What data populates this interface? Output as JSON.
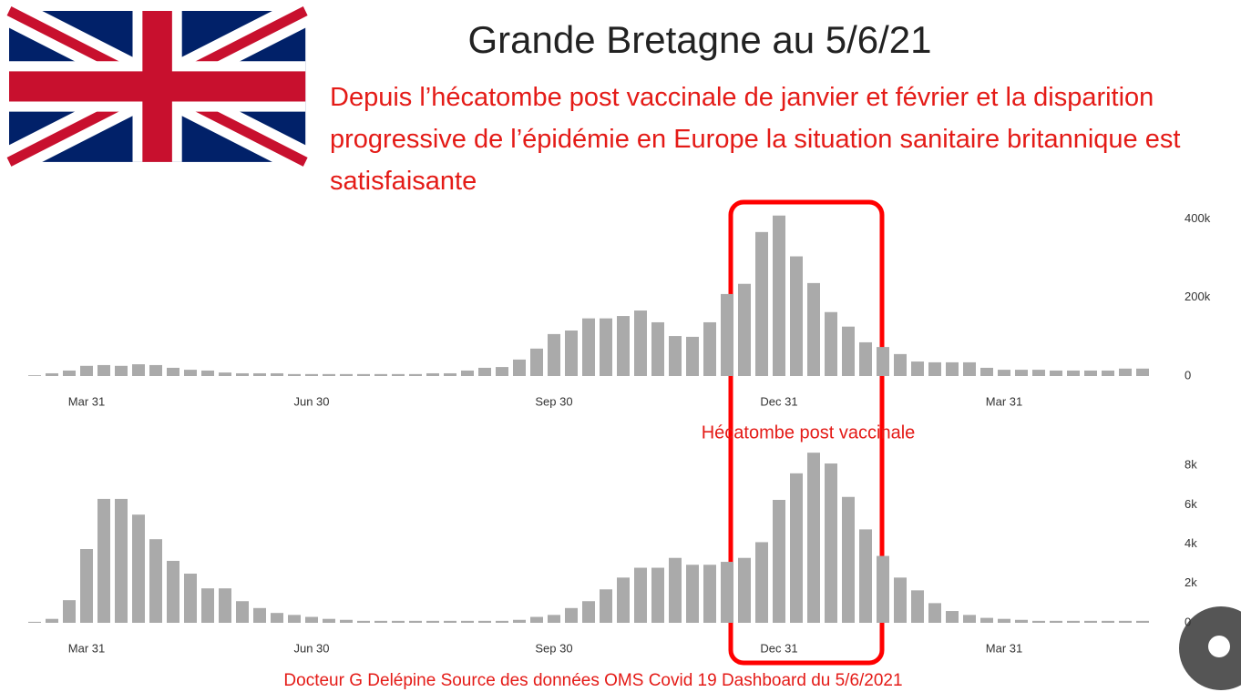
{
  "title": "Grande Bretagne  au 5/6/21",
  "subtitle": "Depuis l’hécatombe post vaccinale de janvier et février et la disparition progressive de l’épidémie en Europe la situation sanitaire britannique est satisfaisante",
  "annotation": "Hécatombe post vaccinale",
  "footer": "Docteur G Delépine  Source des données OMS Covid 19 Dashboard du 5/6/2021",
  "chart_data": [
    {
      "type": "bar",
      "color": "#aaaaaa",
      "categories": [
        null,
        null,
        null,
        "Mar 31",
        null,
        null,
        null,
        null,
        null,
        null,
        null,
        null,
        null,
        null,
        null,
        null,
        "Jun 30",
        null,
        null,
        null,
        null,
        null,
        null,
        null,
        null,
        null,
        null,
        null,
        null,
        null,
        "Sep 30",
        null,
        null,
        null,
        null,
        null,
        null,
        null,
        null,
        null,
        null,
        null,
        null,
        "Dec 31",
        null,
        null,
        null,
        null,
        null,
        null,
        null,
        null,
        null,
        null,
        null,
        null,
        "Mar 31",
        null,
        null,
        null,
        null,
        null,
        null,
        null,
        null
      ],
      "values": [
        2000,
        7000,
        14000,
        26000,
        28000,
        26000,
        30000,
        28000,
        21000,
        16000,
        14000,
        9000,
        7000,
        7000,
        7000,
        5000,
        5000,
        5000,
        5000,
        5000,
        5000,
        5000,
        5000,
        7000,
        7000,
        14000,
        21000,
        23000,
        42000,
        70000,
        107000,
        116000,
        147000,
        147000,
        153000,
        167000,
        137000,
        102000,
        100000,
        137000,
        209000,
        235000,
        367000,
        409000,
        305000,
        237000,
        163000,
        126000,
        86000,
        74000,
        56000,
        37000,
        35000,
        35000,
        35000,
        21000,
        16000,
        16000,
        16000,
        14000,
        14000,
        14000,
        14000,
        19000,
        19000
      ],
      "ylim": [
        0,
        420000
      ],
      "yticks": [
        0,
        {
          "value": 200000,
          "label": "200k"
        },
        {
          "value": 400000,
          "label": "400k"
        }
      ]
    },
    {
      "type": "bar",
      "color": "#aaaaaa",
      "categories": [
        null,
        null,
        null,
        "Mar 31",
        null,
        null,
        null,
        null,
        null,
        null,
        null,
        null,
        null,
        null,
        null,
        null,
        "Jun 30",
        null,
        null,
        null,
        null,
        null,
        null,
        null,
        null,
        null,
        null,
        null,
        null,
        null,
        "Sep 30",
        null,
        null,
        null,
        null,
        null,
        null,
        null,
        null,
        null,
        null,
        null,
        null,
        "Dec 31",
        null,
        null,
        null,
        null,
        null,
        null,
        null,
        null,
        null,
        null,
        null,
        null,
        "Mar 31",
        null,
        null,
        null,
        null,
        null,
        null,
        null,
        null
      ],
      "values": [
        50,
        200,
        1150,
        3750,
        6300,
        6300,
        5500,
        4250,
        3150,
        2500,
        1750,
        1750,
        1100,
        750,
        500,
        400,
        300,
        200,
        150,
        100,
        100,
        100,
        100,
        100,
        100,
        100,
        100,
        100,
        150,
        300,
        400,
        750,
        1100,
        1700,
        2300,
        2800,
        2800,
        3300,
        2950,
        2950,
        3100,
        3300,
        4100,
        6250,
        7600,
        8650,
        8100,
        6400,
        4750,
        3400,
        2300,
        1650,
        1000,
        600,
        400,
        250,
        200,
        150,
        100,
        100,
        100,
        100,
        100,
        100,
        100
      ],
      "ylim": [
        0,
        9000
      ],
      "yticks": [
        0,
        {
          "value": 2000,
          "label": "2k"
        },
        {
          "value": 4000,
          "label": "4k"
        },
        {
          "value": 6000,
          "label": "6k"
        },
        {
          "value": 8000,
          "label": "8k"
        }
      ]
    }
  ]
}
